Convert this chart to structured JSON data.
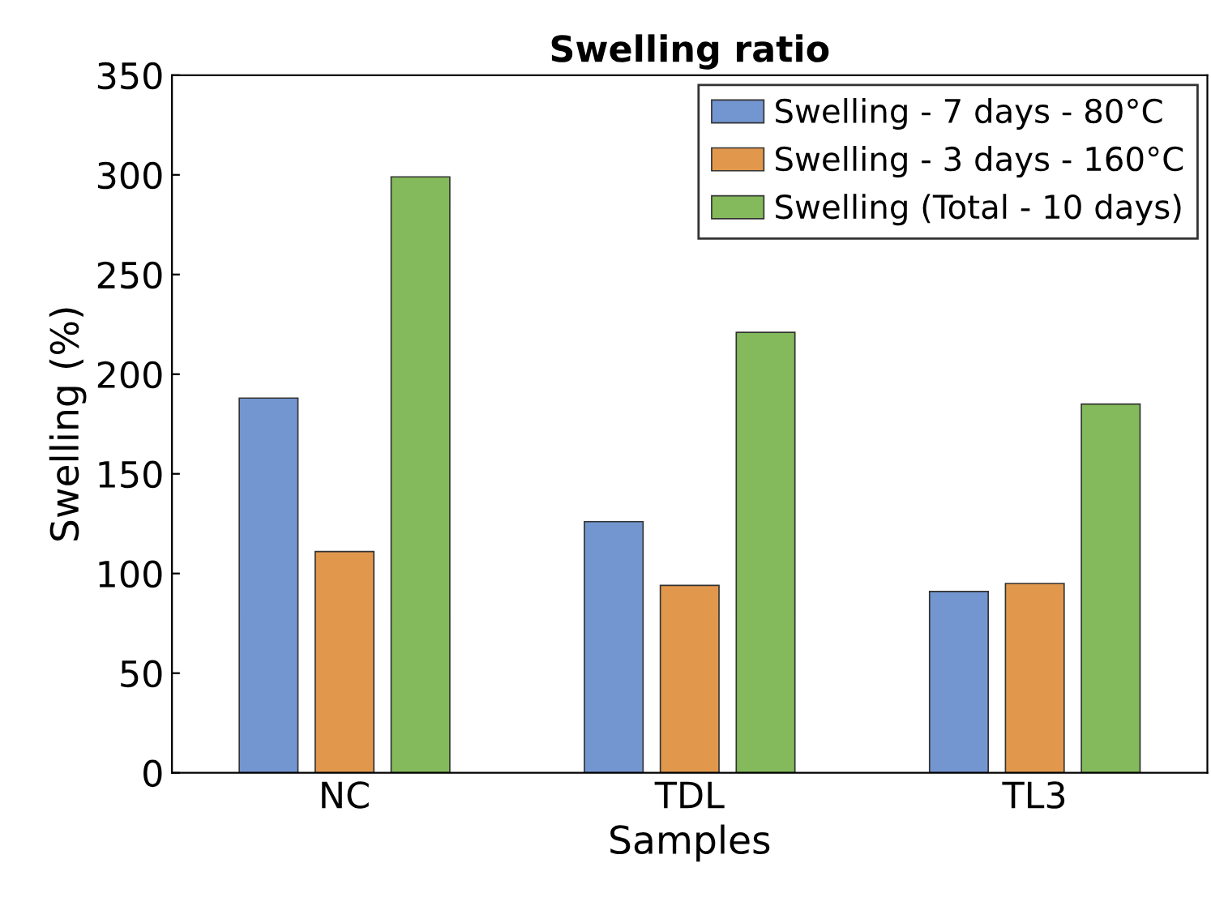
{
  "chart_data": {
    "type": "bar",
    "title": "Swelling ratio",
    "xlabel": "Samples",
    "ylabel": "Swelling (%)",
    "categories": [
      "NC",
      "TDL",
      "TL3"
    ],
    "series": [
      {
        "name": "Swelling - 7 days - 80°C",
        "color": "#7396d0",
        "values": [
          188,
          126,
          91
        ]
      },
      {
        "name": "Swelling - 3 days - 160°C",
        "color": "#e2984c",
        "values": [
          111,
          94,
          95
        ]
      },
      {
        "name": "Swelling (Total - 10 days)",
        "color": "#84ba5b",
        "values": [
          299,
          221,
          185
        ]
      }
    ],
    "ylim": [
      0,
      350
    ],
    "yticks": [
      0,
      50,
      100,
      150,
      200,
      250,
      300,
      350
    ],
    "grid": false,
    "legend": "top right"
  }
}
